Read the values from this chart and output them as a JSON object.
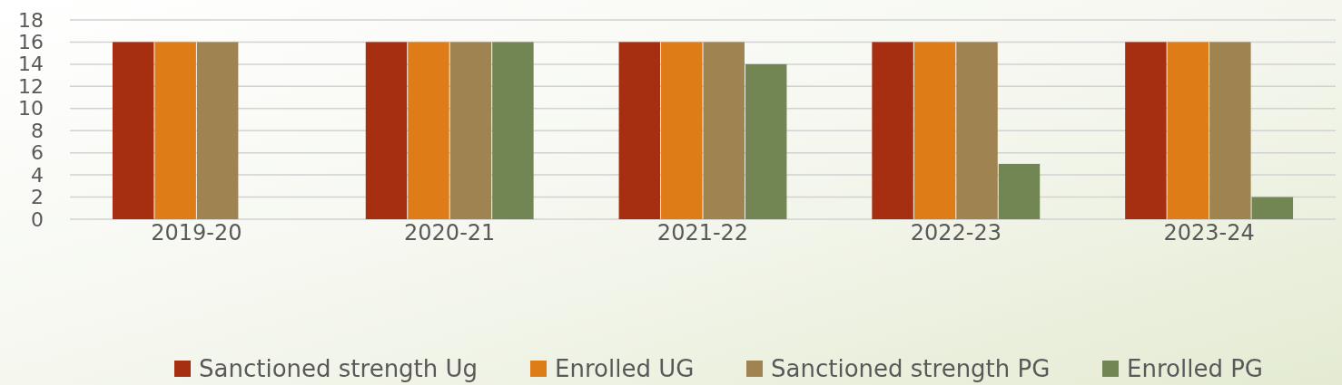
{
  "chart_data": {
    "type": "bar",
    "categories": [
      "2019-20",
      "2020-21",
      "2021-22",
      "2022-23",
      "2023-24"
    ],
    "series": [
      {
        "name": "Sanctioned strength Ug",
        "color": "#a52f10",
        "values": [
          16,
          16,
          16,
          16,
          16
        ]
      },
      {
        "name": "Enrolled UG",
        "color": "#de7c18",
        "values": [
          16,
          16,
          16,
          16,
          16
        ]
      },
      {
        "name": "Sanctioned strength PG",
        "color": "#9f8351",
        "values": [
          16,
          16,
          16,
          16,
          16
        ]
      },
      {
        "name": "Enrolled PG",
        "color": "#728653",
        "values": [
          null,
          16,
          14,
          5,
          2
        ]
      }
    ],
    "ylim": [
      0,
      18
    ],
    "yticks": [
      0,
      2,
      4,
      6,
      8,
      10,
      12,
      14,
      16,
      18
    ],
    "grid": "y",
    "legend": "bottom"
  }
}
